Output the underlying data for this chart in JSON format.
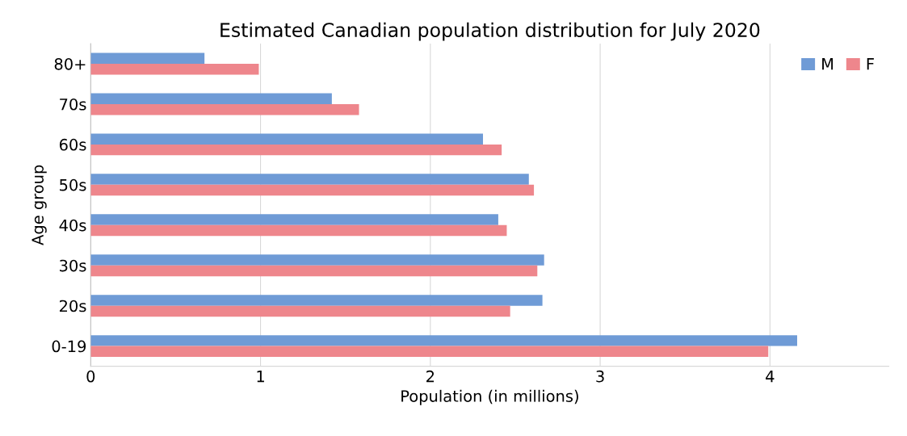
{
  "chart_data": {
    "type": "bar",
    "orientation": "horizontal",
    "title": "Estimated Canadian population distribution for July 2020",
    "xlabel": "Population (in millions)",
    "ylabel": "Age group",
    "categories": [
      "80+",
      "70s",
      "60s",
      "50s",
      "40s",
      "30s",
      "20s",
      "0-19"
    ],
    "series": [
      {
        "name": "M",
        "color": "#6f9bd6",
        "values": [
          0.67,
          1.42,
          2.31,
          2.58,
          2.4,
          2.67,
          2.66,
          4.16
        ]
      },
      {
        "name": "F",
        "color": "#ee868c",
        "values": [
          0.99,
          1.58,
          2.42,
          2.61,
          2.45,
          2.63,
          2.47,
          3.99
        ]
      }
    ],
    "xlim": [
      0,
      4.7
    ],
    "xticks": [
      0,
      1,
      2,
      3,
      4
    ],
    "grid": "x",
    "legend": "top right"
  }
}
